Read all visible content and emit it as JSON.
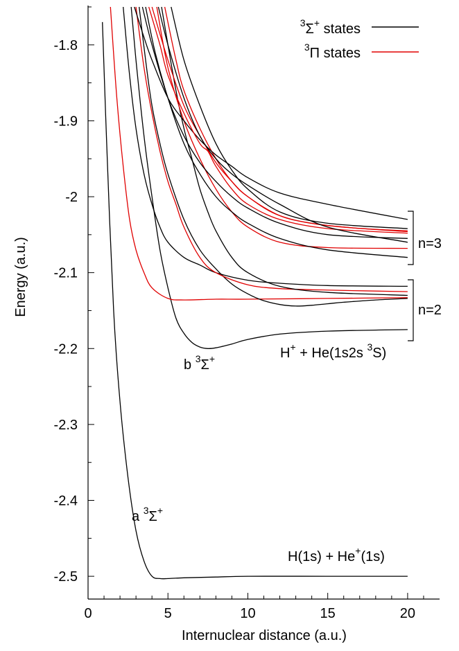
{
  "chart_data": {
    "type": "line",
    "xlabel": "Internuclear distance (a.u.)",
    "ylabel": "Energy (a.u.)",
    "xlim": [
      0,
      22
    ],
    "ylim": [
      -2.53,
      -1.75
    ],
    "x_ticks": [
      "0",
      "5",
      "10",
      "15",
      "20"
    ],
    "y_ticks": [
      "-1.8",
      "-1.9",
      "-2",
      "-2.1",
      "-2.2",
      "-2.3",
      "-2.4",
      "-2.5"
    ],
    "legend": {
      "position": "top-right",
      "entries": [
        {
          "main": "Σ",
          "pre": "3",
          "post": "+",
          "tail": " states",
          "color": "#000000"
        },
        {
          "main": "Π",
          "pre": "3",
          "post": "",
          "tail": " states",
          "color": "#e00000"
        }
      ]
    },
    "colors": {
      "sigma": "#000000",
      "pi": "#e00000"
    },
    "series": [
      {
        "kind": "sigma",
        "x": [
          0.9,
          1.2,
          1.6,
          2.0,
          2.5,
          3.0,
          3.5,
          4.0,
          4.5,
          5,
          6,
          8,
          10,
          15,
          20
        ],
        "y": [
          -1.77,
          -1.95,
          -2.15,
          -2.27,
          -2.37,
          -2.44,
          -2.48,
          -2.5,
          -2.503,
          -2.503,
          -2.502,
          -2.501,
          -2.5,
          -2.5,
          -2.5
        ]
      },
      {
        "kind": "sigma",
        "x": [
          2.7,
          3.0,
          3.5,
          4.0,
          4.5,
          5,
          5.5,
          6,
          6.5,
          7,
          7.5,
          8,
          9,
          10,
          12,
          15,
          20
        ],
        "y": [
          -1.75,
          -1.82,
          -1.92,
          -2.0,
          -2.07,
          -2.12,
          -2.16,
          -2.18,
          -2.192,
          -2.198,
          -2.2,
          -2.199,
          -2.194,
          -2.188,
          -2.181,
          -2.177,
          -2.175
        ]
      },
      {
        "kind": "pi",
        "x": [
          1.4,
          1.8,
          2.2,
          2.6,
          3.0,
          3.5,
          4.0,
          5,
          6,
          8,
          10,
          15,
          20
        ],
        "y": [
          -1.75,
          -1.87,
          -1.96,
          -2.03,
          -2.07,
          -2.1,
          -2.12,
          -2.134,
          -2.136,
          -2.135,
          -2.135,
          -2.134,
          -2.133
        ]
      },
      {
        "kind": "sigma",
        "x": [
          3.2,
          3.6,
          4.0,
          4.5,
          5,
          6,
          7,
          8,
          9,
          10,
          11,
          12,
          13,
          14,
          15,
          16,
          18,
          20
        ],
        "y": [
          -1.75,
          -1.82,
          -1.88,
          -1.93,
          -1.97,
          -2.03,
          -2.07,
          -2.095,
          -2.115,
          -2.128,
          -2.137,
          -2.142,
          -2.144,
          -2.143,
          -2.141,
          -2.139,
          -2.136,
          -2.134
        ]
      },
      {
        "kind": "sigma",
        "x": [
          2.2,
          2.6,
          3.0,
          3.5,
          4.0,
          4.5,
          5,
          6,
          7,
          8,
          10,
          12,
          15,
          20
        ],
        "y": [
          -1.75,
          -1.84,
          -1.91,
          -1.97,
          -2.01,
          -2.04,
          -2.06,
          -2.08,
          -2.09,
          -2.1,
          -2.11,
          -2.114,
          -2.117,
          -2.118
        ]
      },
      {
        "kind": "pi",
        "x": [
          3.0,
          3.5,
          4.0,
          4.5,
          5,
          5.5,
          6,
          7,
          8,
          10,
          12,
          15,
          20
        ],
        "y": [
          -1.75,
          -1.83,
          -1.89,
          -1.94,
          -1.98,
          -2.01,
          -2.04,
          -2.08,
          -2.1,
          -2.116,
          -2.121,
          -2.123,
          -2.125
        ]
      },
      {
        "kind": "sigma",
        "x": [
          4.6,
          5,
          5.5,
          6,
          6.5,
          7,
          7.5,
          8,
          9,
          10,
          12,
          15,
          20
        ],
        "y": [
          -1.75,
          -1.8,
          -1.86,
          -1.91,
          -1.95,
          -1.99,
          -2.02,
          -2.045,
          -2.08,
          -2.1,
          -2.118,
          -2.126,
          -2.13
        ]
      },
      {
        "kind": "pi",
        "x": [
          4.3,
          5,
          6,
          7,
          8,
          9,
          10,
          12,
          15,
          20
        ],
        "y": [
          -1.75,
          -1.83,
          -1.9,
          -1.95,
          -1.99,
          -2.02,
          -2.04,
          -2.06,
          -2.067,
          -2.068
        ]
      },
      {
        "kind": "sigma",
        "x": [
          3.6,
          4.2,
          5,
          6,
          7,
          8,
          9,
          10,
          12,
          15,
          20
        ],
        "y": [
          -1.75,
          -1.81,
          -1.87,
          -1.93,
          -1.97,
          -2.0,
          -2.02,
          -2.035,
          -2.055,
          -2.07,
          -2.08
        ]
      },
      {
        "kind": "sigma",
        "x": [
          3.4,
          4.0,
          5,
          6,
          7,
          8,
          9,
          10,
          12,
          15,
          20
        ],
        "y": [
          -1.75,
          -1.8,
          -1.87,
          -1.92,
          -1.955,
          -1.98,
          -2.0,
          -2.015,
          -2.035,
          -2.05,
          -2.055
        ]
      },
      {
        "kind": "pi",
        "x": [
          4.8,
          5.5,
          6,
          7,
          8,
          9,
          10,
          12,
          14,
          16,
          18,
          20
        ],
        "y": [
          -1.75,
          -1.82,
          -1.86,
          -1.91,
          -1.95,
          -1.98,
          -2.0,
          -2.025,
          -2.035,
          -2.04,
          -2.043,
          -2.045
        ]
      },
      {
        "kind": "sigma",
        "x": [
          2.9,
          3.5,
          4.0,
          5,
          6,
          7,
          8,
          9,
          10,
          12,
          15,
          20
        ],
        "y": [
          -1.75,
          -1.79,
          -1.82,
          -1.87,
          -1.9,
          -1.925,
          -1.945,
          -1.96,
          -1.975,
          -1.995,
          -2.01,
          -2.03
        ]
      },
      {
        "kind": "pi",
        "x": [
          3.8,
          4.5,
          5,
          6,
          7,
          7.5,
          8,
          9,
          10,
          12,
          15,
          20
        ],
        "y": [
          -1.75,
          -1.8,
          -1.84,
          -1.89,
          -1.93,
          -1.94,
          -1.96,
          -1.99,
          -2.01,
          -2.03,
          -2.042,
          -2.048
        ]
      },
      {
        "kind": "sigma",
        "x": [
          5.2,
          6,
          7,
          8,
          9,
          10,
          12,
          15,
          20
        ],
        "y": [
          -1.75,
          -1.82,
          -1.88,
          -1.93,
          -1.965,
          -1.99,
          -2.02,
          -2.035,
          -2.042
        ]
      },
      {
        "kind": "pi",
        "x": [
          4.0,
          5,
          6,
          7,
          8,
          9,
          10,
          12,
          15,
          20
        ],
        "y": [
          -1.75,
          -1.82,
          -1.88,
          -1.92,
          -1.955,
          -1.98,
          -2.0,
          -2.025,
          -2.038,
          -2.046
        ]
      },
      {
        "kind": "sigma",
        "x": [
          4.4,
          5,
          6,
          7,
          8,
          9,
          10,
          12,
          15,
          20
        ],
        "y": [
          -1.75,
          -1.8,
          -1.87,
          -1.92,
          -1.95,
          -1.97,
          -1.985,
          -2.01,
          -2.04,
          -2.06
        ]
      }
    ],
    "annotations": [
      {
        "pre": "b ",
        "sup1": "3",
        "main": "Σ",
        "sup2": "+",
        "tail": ""
      },
      {
        "pre": "a ",
        "sup1": "3",
        "main": "Σ",
        "sup2": "+",
        "tail": ""
      },
      {
        "pre": "H",
        "sup1": "+",
        "main": " + He(1s2s ",
        "sup2": "3",
        "tail": "S)"
      },
      {
        "pre": "H(1s) + He",
        "sup1": "+",
        "main": "(1s)",
        "sup2": "",
        "tail": ""
      },
      {
        "pre": "n=3",
        "sup1": "",
        "main": "",
        "sup2": "",
        "tail": ""
      },
      {
        "pre": "n=2",
        "sup1": "",
        "main": "",
        "sup2": "",
        "tail": ""
      }
    ]
  }
}
